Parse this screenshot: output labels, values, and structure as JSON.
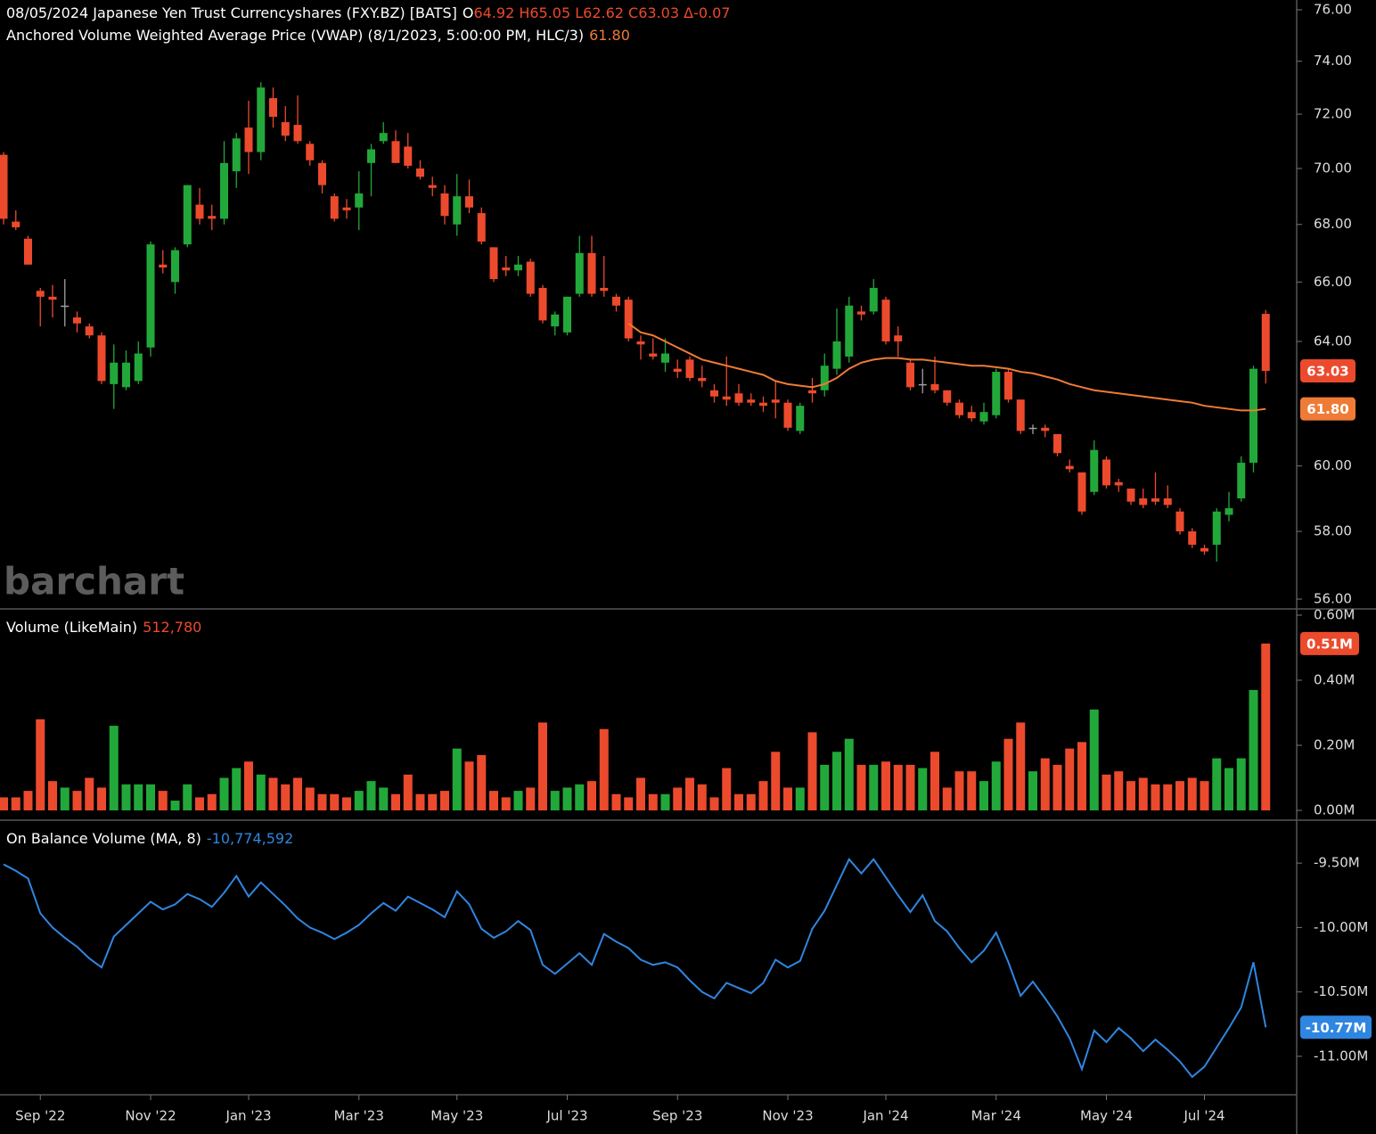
{
  "chart_data": [
    {
      "type": "candlestick",
      "title": "08/05/2024 Japanese Yen Trust Currencyshares (FXY.BZ) [BATS]",
      "quote_prefix": "O",
      "quote": "64.92  H65.05  L62.62  C63.03  Δ-0.07",
      "watermark": "barchart",
      "categories": [
        null,
        null,
        null,
        "Sep '22",
        null,
        null,
        null,
        null,
        null,
        null,
        null,
        null,
        "Nov '22",
        null,
        null,
        null,
        null,
        null,
        null,
        null,
        "Jan '23",
        null,
        null,
        null,
        null,
        null,
        null,
        null,
        null,
        "Mar '23",
        null,
        null,
        null,
        null,
        null,
        null,
        null,
        "May '23",
        null,
        null,
        null,
        null,
        null,
        null,
        null,
        null,
        "Jul '23",
        null,
        null,
        null,
        null,
        null,
        null,
        null,
        null,
        "Sep '23",
        null,
        null,
        null,
        null,
        null,
        null,
        null,
        null,
        "Nov '23",
        null,
        null,
        null,
        null,
        null,
        null,
        null,
        "Jan '24",
        null,
        null,
        null,
        null,
        null,
        null,
        null,
        null,
        "Mar '24",
        null,
        null,
        null,
        null,
        null,
        null,
        null,
        null,
        "May '24",
        null,
        null,
        null,
        null,
        null,
        null,
        null,
        "Jul '24",
        null,
        null,
        null,
        null,
        null
      ],
      "ohlc": [
        [
          70.5,
          70.6,
          68.0,
          68.2
        ],
        [
          68.1,
          68.5,
          67.8,
          67.9
        ],
        [
          67.5,
          67.6,
          66.6,
          66.6
        ],
        [
          65.7,
          65.8,
          64.5,
          65.5
        ],
        [
          65.5,
          65.9,
          64.8,
          65.4
        ],
        [
          65.2,
          66.1,
          64.5,
          65.2
        ],
        [
          64.8,
          65.0,
          64.3,
          64.6
        ],
        [
          64.5,
          64.6,
          64.1,
          64.2
        ],
        [
          64.2,
          64.3,
          62.6,
          62.7
        ],
        [
          62.6,
          63.9,
          61.8,
          63.3
        ],
        [
          62.5,
          63.7,
          62.4,
          63.3
        ],
        [
          62.7,
          64.0,
          62.6,
          63.6
        ],
        [
          63.8,
          67.4,
          63.5,
          67.3
        ],
        [
          66.6,
          67.1,
          66.3,
          66.5
        ],
        [
          66.0,
          67.2,
          65.6,
          67.1
        ],
        [
          67.3,
          69.4,
          67.2,
          69.4
        ],
        [
          68.7,
          69.3,
          68.0,
          68.2
        ],
        [
          68.3,
          68.7,
          67.8,
          68.2
        ],
        [
          68.2,
          71.0,
          68.0,
          70.2
        ],
        [
          69.9,
          71.3,
          69.3,
          71.1
        ],
        [
          71.5,
          72.5,
          69.8,
          70.6
        ],
        [
          70.6,
          73.2,
          70.3,
          73.0
        ],
        [
          72.6,
          73.0,
          71.5,
          71.9
        ],
        [
          71.7,
          72.3,
          71.0,
          71.2
        ],
        [
          71.6,
          72.7,
          70.9,
          71.0
        ],
        [
          70.9,
          71.0,
          70.1,
          70.3
        ],
        [
          70.2,
          70.3,
          69.1,
          69.4
        ],
        [
          69.0,
          69.1,
          68.1,
          68.2
        ],
        [
          68.6,
          68.9,
          68.2,
          68.5
        ],
        [
          68.6,
          69.9,
          67.8,
          69.1
        ],
        [
          70.2,
          70.9,
          69.0,
          70.7
        ],
        [
          71.0,
          71.7,
          70.9,
          71.3
        ],
        [
          71.0,
          71.4,
          70.2,
          70.2
        ],
        [
          70.8,
          71.3,
          70.0,
          70.1
        ],
        [
          70.0,
          70.3,
          69.6,
          69.7
        ],
        [
          69.4,
          69.7,
          69.0,
          69.3
        ],
        [
          69.1,
          69.4,
          68.0,
          68.3
        ],
        [
          68.0,
          69.8,
          67.6,
          69.0
        ],
        [
          69.0,
          69.6,
          68.4,
          68.6
        ],
        [
          68.4,
          68.6,
          67.3,
          67.4
        ],
        [
          67.2,
          67.2,
          66.0,
          66.1
        ],
        [
          66.5,
          66.9,
          66.2,
          66.4
        ],
        [
          66.4,
          66.9,
          66.2,
          66.6
        ],
        [
          66.7,
          66.8,
          65.5,
          65.6
        ],
        [
          65.8,
          65.9,
          64.6,
          64.7
        ],
        [
          64.5,
          65.0,
          64.2,
          64.9
        ],
        [
          64.3,
          65.5,
          64.2,
          65.5
        ],
        [
          65.6,
          67.6,
          65.5,
          67.0
        ],
        [
          67.0,
          67.6,
          65.5,
          65.6
        ],
        [
          65.8,
          66.9,
          65.5,
          65.7
        ],
        [
          65.5,
          65.6,
          65.0,
          65.2
        ],
        [
          65.4,
          65.5,
          64.0,
          64.1
        ],
        [
          64.0,
          64.2,
          63.4,
          63.9
        ],
        [
          63.6,
          64.1,
          63.4,
          63.5
        ],
        [
          63.3,
          64.1,
          63.0,
          63.6
        ],
        [
          63.1,
          63.4,
          62.8,
          63.0
        ],
        [
          63.4,
          63.5,
          62.7,
          62.8
        ],
        [
          62.8,
          63.2,
          62.5,
          62.7
        ],
        [
          62.4,
          62.6,
          62.0,
          62.2
        ],
        [
          62.2,
          63.5,
          61.9,
          62.1
        ],
        [
          62.3,
          62.6,
          61.9,
          62.0
        ],
        [
          62.1,
          62.3,
          61.9,
          62.0
        ],
        [
          62.0,
          62.2,
          61.7,
          61.9
        ],
        [
          62.1,
          62.7,
          61.5,
          62.0
        ],
        [
          62.0,
          62.1,
          61.1,
          61.2
        ],
        [
          61.1,
          62.0,
          61.0,
          61.9
        ],
        [
          62.4,
          62.8,
          62.0,
          62.3
        ],
        [
          62.4,
          63.6,
          62.2,
          63.2
        ],
        [
          63.1,
          65.1,
          62.9,
          64.0
        ],
        [
          63.5,
          65.5,
          63.3,
          65.2
        ],
        [
          65.0,
          65.2,
          64.7,
          64.9
        ],
        [
          65.0,
          66.1,
          64.9,
          65.8
        ],
        [
          65.4,
          65.5,
          63.9,
          64.0
        ],
        [
          64.2,
          64.5,
          63.5,
          64.0
        ],
        [
          63.3,
          63.4,
          62.4,
          62.5
        ],
        [
          62.6,
          63.1,
          62.3,
          62.6
        ],
        [
          62.6,
          63.5,
          62.3,
          62.4
        ],
        [
          62.4,
          62.4,
          61.9,
          62.0
        ],
        [
          62.0,
          62.1,
          61.5,
          61.6
        ],
        [
          61.7,
          61.9,
          61.4,
          61.5
        ],
        [
          61.4,
          62.0,
          61.3,
          61.7
        ],
        [
          61.6,
          63.1,
          61.5,
          63.0
        ],
        [
          63.0,
          63.1,
          62.0,
          62.1
        ],
        [
          62.1,
          62.1,
          61.0,
          61.1
        ],
        [
          61.2,
          61.3,
          61.0,
          61.2
        ],
        [
          61.2,
          61.3,
          60.9,
          61.1
        ],
        [
          61.0,
          61.0,
          60.3,
          60.4
        ],
        [
          60.0,
          60.2,
          59.8,
          59.9
        ],
        [
          59.8,
          59.8,
          58.5,
          58.6
        ],
        [
          59.2,
          60.8,
          59.1,
          60.5
        ],
        [
          60.2,
          60.3,
          59.3,
          59.4
        ],
        [
          59.5,
          59.6,
          59.2,
          59.4
        ],
        [
          59.3,
          59.3,
          58.8,
          58.9
        ],
        [
          59.0,
          59.3,
          58.7,
          58.8
        ],
        [
          59.0,
          59.8,
          58.8,
          58.9
        ],
        [
          59.0,
          59.4,
          58.7,
          58.8
        ],
        [
          58.6,
          58.7,
          57.9,
          58.0
        ],
        [
          58.0,
          58.1,
          57.5,
          57.6
        ],
        [
          57.5,
          57.6,
          57.3,
          57.4
        ],
        [
          57.6,
          58.7,
          57.1,
          58.6
        ],
        [
          58.5,
          59.2,
          58.3,
          58.7
        ],
        [
          59.0,
          60.3,
          58.9,
          60.1
        ],
        [
          60.1,
          63.2,
          59.8,
          63.1
        ],
        [
          64.92,
          65.05,
          62.62,
          63.03
        ]
      ],
      "up_color": "#22a83a",
      "down_color": "#ec4a2d",
      "flat_color": "#a0a0a0",
      "series": [
        {
          "name": "Anchored Volume Weighted Average Price (VWAP)  (8/1/2023, 5:00:00 PM, HLC/3)",
          "color": "#f07b36",
          "value_label": "61.80",
          "values": [
            null,
            null,
            null,
            null,
            null,
            null,
            null,
            null,
            null,
            null,
            null,
            null,
            null,
            null,
            null,
            null,
            null,
            null,
            null,
            null,
            null,
            null,
            null,
            null,
            null,
            null,
            null,
            null,
            null,
            null,
            null,
            null,
            null,
            null,
            null,
            null,
            null,
            null,
            null,
            null,
            null,
            null,
            null,
            null,
            null,
            null,
            null,
            null,
            null,
            null,
            null,
            64.6,
            64.3,
            64.2,
            64.0,
            63.8,
            63.6,
            63.4,
            63.3,
            63.2,
            63.1,
            63.0,
            62.9,
            62.7,
            62.6,
            62.55,
            62.5,
            62.6,
            62.8,
            63.1,
            63.3,
            63.4,
            63.45,
            63.45,
            63.4,
            63.4,
            63.35,
            63.3,
            63.25,
            63.2,
            63.2,
            63.15,
            63.1,
            63.0,
            62.95,
            62.85,
            62.75,
            62.6,
            62.5,
            62.4,
            62.35,
            62.3,
            62.25,
            62.2,
            62.15,
            62.1,
            62.05,
            62.0,
            61.9,
            61.85,
            61.8,
            61.75,
            61.75,
            61.8
          ]
        }
      ],
      "ylim": [
        56,
        76
      ],
      "log_scale": true,
      "yticks": [
        {
          "value": 56,
          "label": "56.00"
        },
        {
          "value": 58,
          "label": "58.00"
        },
        {
          "value": 60,
          "label": "60.00"
        },
        {
          "value": 64,
          "label": "64.00"
        },
        {
          "value": 66,
          "label": "66.00"
        },
        {
          "value": 68,
          "label": "68.00"
        },
        {
          "value": 70,
          "label": "70.00"
        },
        {
          "value": 72,
          "label": "72.00"
        },
        {
          "value": 74,
          "label": "74.00"
        },
        {
          "value": 76,
          "label": "76.00"
        }
      ],
      "last_label": "63.03"
    },
    {
      "type": "bar",
      "title": "Volume  (LikeMain)",
      "value_label": "512,780",
      "values": [
        0.04,
        0.04,
        0.06,
        0.28,
        0.09,
        0.07,
        0.06,
        0.1,
        0.07,
        0.26,
        0.08,
        0.08,
        0.08,
        0.06,
        0.03,
        0.08,
        0.04,
        0.05,
        0.1,
        0.13,
        0.15,
        0.11,
        0.1,
        0.08,
        0.1,
        0.07,
        0.05,
        0.05,
        0.04,
        0.06,
        0.09,
        0.07,
        0.05,
        0.11,
        0.05,
        0.05,
        0.06,
        0.19,
        0.15,
        0.17,
        0.06,
        0.04,
        0.06,
        0.07,
        0.27,
        0.06,
        0.07,
        0.08,
        0.09,
        0.25,
        0.05,
        0.04,
        0.1,
        0.05,
        0.05,
        0.07,
        0.1,
        0.08,
        0.04,
        0.13,
        0.05,
        0.05,
        0.09,
        0.18,
        0.07,
        0.07,
        0.24,
        0.14,
        0.18,
        0.22,
        0.14,
        0.14,
        0.15,
        0.14,
        0.14,
        0.13,
        0.18,
        0.07,
        0.12,
        0.12,
        0.09,
        0.15,
        0.22,
        0.27,
        0.12,
        0.16,
        0.14,
        0.19,
        0.21,
        0.31,
        0.11,
        0.12,
        0.09,
        0.1,
        0.08,
        0.08,
        0.09,
        0.1,
        0.09,
        0.16,
        0.13,
        0.16,
        0.37,
        0.51278
      ],
      "ylim": [
        0,
        0.6
      ],
      "yticks": [
        {
          "value": 0,
          "label": "0.00M"
        },
        {
          "value": 0.2,
          "label": "0.20M"
        },
        {
          "value": 0.4,
          "label": "0.40M"
        },
        {
          "value": 0.6,
          "label": "0.60M"
        }
      ],
      "last_label": "0.51M"
    },
    {
      "type": "line",
      "title": "On Balance Volume  (MA, 8)",
      "value_label": "-10,774,592",
      "color": "#2f86e0",
      "values": [
        -9.51,
        -9.56,
        -9.62,
        -9.89,
        -10.0,
        -10.08,
        -10.15,
        -10.24,
        -10.31,
        -10.07,
        -9.98,
        -9.89,
        -9.8,
        -9.86,
        -9.82,
        -9.74,
        -9.78,
        -9.84,
        -9.73,
        -9.6,
        -9.76,
        -9.65,
        -9.74,
        -9.83,
        -9.93,
        -10.0,
        -10.04,
        -10.09,
        -10.04,
        -9.98,
        -9.89,
        -9.81,
        -9.87,
        -9.76,
        -9.81,
        -9.86,
        -9.92,
        -9.72,
        -9.82,
        -10.01,
        -10.08,
        -10.03,
        -9.95,
        -10.02,
        -10.29,
        -10.36,
        -10.28,
        -10.2,
        -10.29,
        -10.05,
        -10.11,
        -10.16,
        -10.25,
        -10.29,
        -10.27,
        -10.31,
        -10.41,
        -10.5,
        -10.55,
        -10.43,
        -10.47,
        -10.51,
        -10.43,
        -10.25,
        -10.31,
        -10.26,
        -10.01,
        -9.87,
        -9.67,
        -9.47,
        -9.58,
        -9.47,
        -9.61,
        -9.75,
        -9.88,
        -9.75,
        -9.95,
        -10.03,
        -10.16,
        -10.27,
        -10.18,
        -10.04,
        -10.27,
        -10.53,
        -10.42,
        -10.55,
        -10.69,
        -10.86,
        -11.1,
        -10.8,
        -10.89,
        -10.78,
        -10.86,
        -10.96,
        -10.87,
        -10.95,
        -11.04,
        -11.16,
        -11.08,
        -10.93,
        -10.78,
        -10.62,
        -10.27,
        -10.774592
      ],
      "ylim": [
        -11.25,
        -9.25
      ],
      "yticks": [
        {
          "value": -9.5,
          "label": "-9.50M"
        },
        {
          "value": -10,
          "label": "-10.00M"
        },
        {
          "value": -10.5,
          "label": "-10.50M"
        },
        {
          "value": -11,
          "label": "-11.00M"
        }
      ],
      "last_label": "-10.77M"
    }
  ]
}
